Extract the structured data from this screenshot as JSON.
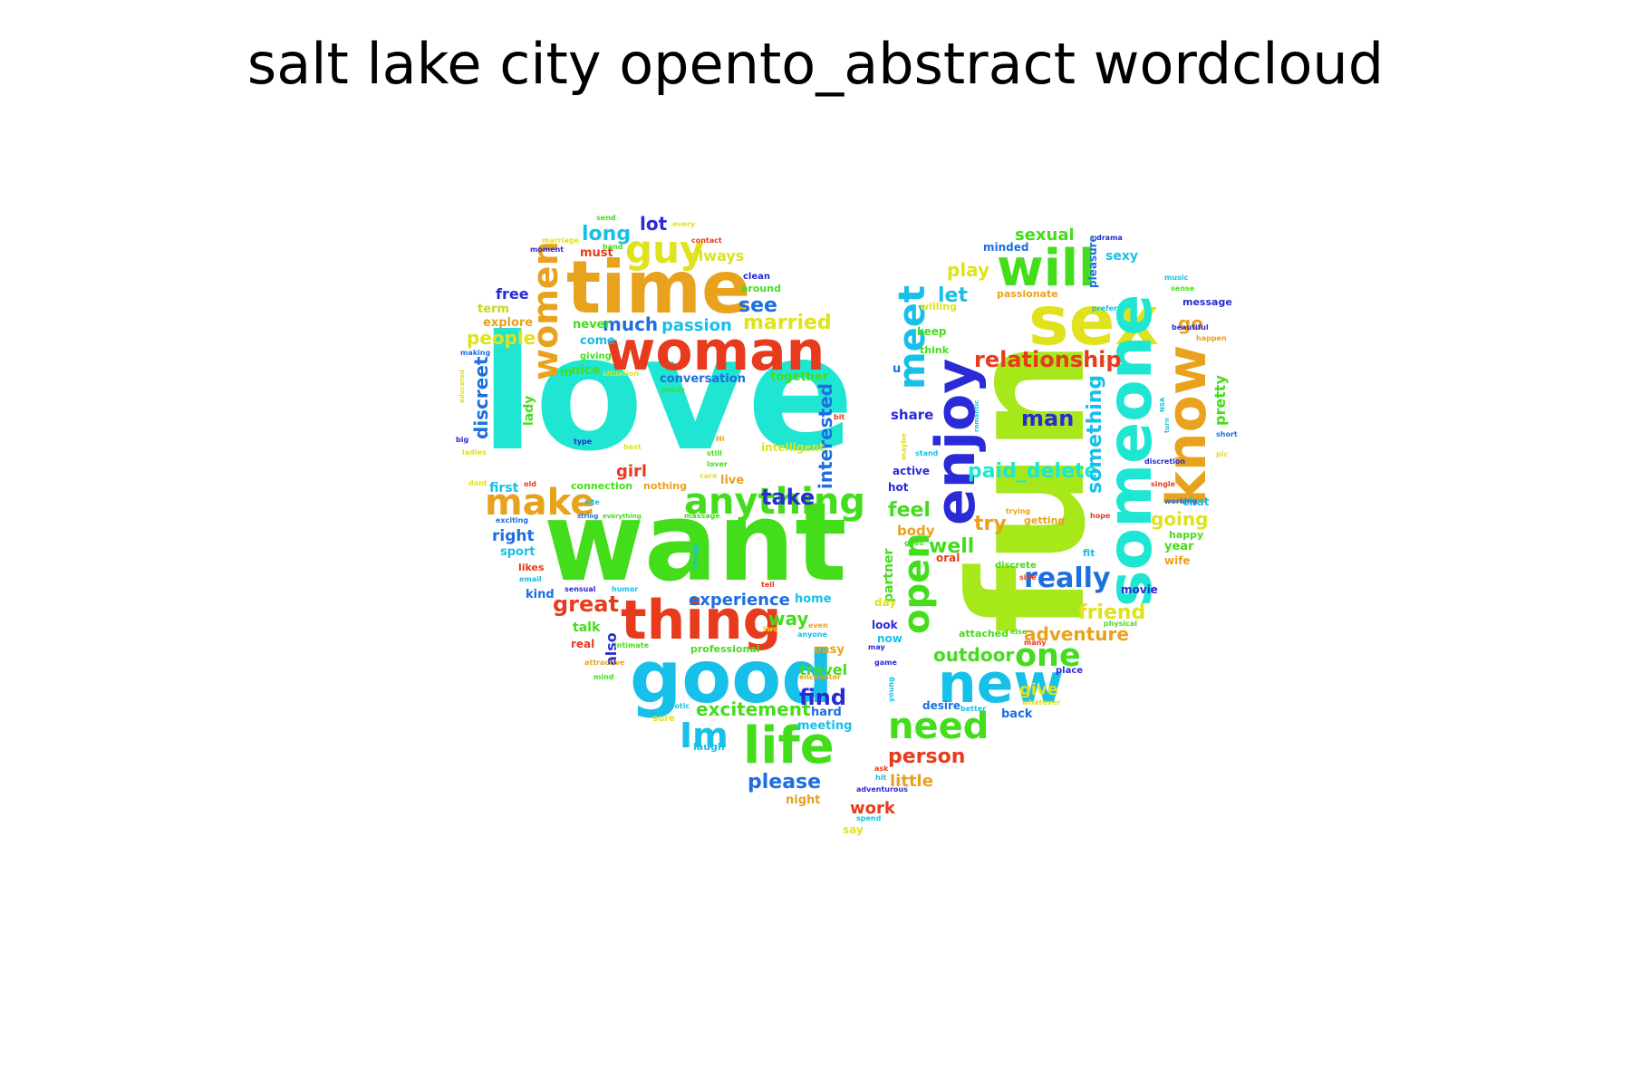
{
  "title": "salt lake city opento_abstract wordcloud",
  "colors": {
    "cyan": "#1ee6d2",
    "green": "#44dd1c",
    "lime": "#a6e81a",
    "yellow": "#dfe21c",
    "orange": "#e8a21e",
    "red": "#e83b1d",
    "blue": "#1d6fe0",
    "indigo": "#2a2ad6",
    "teal": "#16c0e8",
    "olive": "#c8d81c"
  },
  "words": [
    {
      "text": "love",
      "color": "cyan",
      "size": "xxl"
    },
    {
      "text": "want",
      "color": "green",
      "size": "xxl"
    },
    {
      "text": "fun",
      "color": "lime",
      "size": "xxl"
    },
    {
      "text": "time",
      "color": "orange",
      "size": "xl"
    },
    {
      "text": "woman",
      "color": "red",
      "size": "l"
    },
    {
      "text": "good",
      "color": "teal",
      "size": "xl"
    },
    {
      "text": "thing",
      "color": "red",
      "size": "l"
    },
    {
      "text": "sex",
      "color": "yellow",
      "size": "xl"
    },
    {
      "text": "will",
      "color": "green",
      "size": "l"
    },
    {
      "text": "someone",
      "color": "cyan",
      "size": "xl"
    },
    {
      "text": "enjoy",
      "color": "indigo",
      "size": "xl"
    },
    {
      "text": "new",
      "color": "teal",
      "size": "xl"
    },
    {
      "text": "know",
      "color": "orange",
      "size": "l"
    },
    {
      "text": "life",
      "color": "green",
      "size": "l"
    },
    {
      "text": "anything",
      "color": "green",
      "size": "m"
    },
    {
      "text": "make",
      "color": "orange",
      "size": "m"
    },
    {
      "text": "women",
      "color": "orange",
      "size": "m"
    },
    {
      "text": "guy",
      "color": "yellow",
      "size": "m"
    },
    {
      "text": "need",
      "color": "green",
      "size": "m"
    },
    {
      "text": "open",
      "color": "green",
      "size": "m"
    },
    {
      "text": "meet",
      "color": "teal",
      "size": "m"
    },
    {
      "text": "Im",
      "color": "teal",
      "size": "m"
    },
    {
      "text": "one",
      "color": "green",
      "size": "m"
    },
    {
      "text": "really",
      "color": "blue",
      "size": "m"
    },
    {
      "text": "relationship",
      "color": "red",
      "size": "s"
    },
    {
      "text": "great",
      "color": "red",
      "size": "s"
    },
    {
      "text": "man",
      "color": "indigo",
      "size": "s"
    },
    {
      "text": "paid_delete",
      "color": "cyan",
      "size": "s"
    },
    {
      "text": "something",
      "color": "teal",
      "size": "s"
    },
    {
      "text": "person",
      "color": "red",
      "size": "s"
    },
    {
      "text": "friend",
      "color": "yellow",
      "size": "s"
    },
    {
      "text": "adventure",
      "color": "orange",
      "size": "s"
    },
    {
      "text": "outdoor",
      "color": "green",
      "size": "s"
    },
    {
      "text": "experience",
      "color": "blue",
      "size": "s"
    },
    {
      "text": "excitement",
      "color": "green",
      "size": "s"
    },
    {
      "text": "please",
      "color": "blue",
      "size": "s"
    },
    {
      "text": "find",
      "color": "indigo",
      "size": "s"
    },
    {
      "text": "take",
      "color": "indigo",
      "size": "s"
    },
    {
      "text": "married",
      "color": "yellow",
      "size": "s"
    },
    {
      "text": "see",
      "color": "blue",
      "size": "s"
    },
    {
      "text": "much",
      "color": "blue",
      "size": "s"
    },
    {
      "text": "passion",
      "color": "teal",
      "size": "s"
    },
    {
      "text": "people",
      "color": "yellow",
      "size": "s"
    },
    {
      "text": "discreet",
      "color": "blue",
      "size": "s"
    },
    {
      "text": "interested",
      "color": "blue",
      "size": "s"
    },
    {
      "text": "long",
      "color": "teal",
      "size": "s"
    },
    {
      "text": "lot",
      "color": "indigo",
      "size": "s"
    },
    {
      "text": "going",
      "color": "yellow",
      "size": "s"
    },
    {
      "text": "well",
      "color": "green",
      "size": "s"
    },
    {
      "text": "try",
      "color": "orange",
      "size": "s"
    },
    {
      "text": "feel",
      "color": "green",
      "size": "s"
    },
    {
      "text": "let",
      "color": "teal",
      "size": "s"
    },
    {
      "text": "play",
      "color": "yellow",
      "size": "s"
    },
    {
      "text": "sexual",
      "color": "green",
      "size": "s"
    },
    {
      "text": "go",
      "color": "orange",
      "size": "s"
    },
    {
      "text": "pretty",
      "color": "green",
      "size": "xs"
    },
    {
      "text": "way",
      "color": "green",
      "size": "s"
    },
    {
      "text": "give",
      "color": "yellow",
      "size": "s"
    },
    {
      "text": "little",
      "color": "orange",
      "size": "s"
    },
    {
      "text": "work",
      "color": "red",
      "size": "s"
    },
    {
      "text": "girl",
      "color": "red",
      "size": "s"
    },
    {
      "text": "right",
      "color": "blue",
      "size": "xs"
    },
    {
      "text": "also",
      "color": "indigo",
      "size": "xs"
    },
    {
      "text": "always",
      "color": "yellow",
      "size": "xs"
    },
    {
      "text": "travel",
      "color": "green",
      "size": "xs"
    },
    {
      "text": "share",
      "color": "indigo",
      "size": "xs"
    },
    {
      "text": "body",
      "color": "orange",
      "size": "xs"
    },
    {
      "text": "partner",
      "color": "green",
      "size": "xs"
    },
    {
      "text": "free",
      "color": "indigo",
      "size": "xs"
    },
    {
      "text": "term",
      "color": "olive",
      "size": "xs"
    },
    {
      "text": "explore",
      "color": "orange",
      "size": "xs"
    },
    {
      "text": "nice",
      "color": "green",
      "size": "xs"
    },
    {
      "text": "never",
      "color": "green",
      "size": "xs"
    },
    {
      "text": "come",
      "color": "teal",
      "size": "xs"
    },
    {
      "text": "conversation",
      "color": "blue",
      "size": "xs"
    },
    {
      "text": "together",
      "color": "green",
      "size": "xs"
    },
    {
      "text": "intelligent",
      "color": "yellow",
      "size": "xs"
    },
    {
      "text": "lady",
      "color": "green",
      "size": "xs"
    },
    {
      "text": "first",
      "color": "teal",
      "size": "xs"
    },
    {
      "text": "sport",
      "color": "teal",
      "size": "xs"
    },
    {
      "text": "kind",
      "color": "blue",
      "size": "xs"
    },
    {
      "text": "talk",
      "color": "green",
      "size": "xs"
    },
    {
      "text": "real",
      "color": "red",
      "size": "xs"
    },
    {
      "text": "professional",
      "color": "green",
      "size": "xs"
    },
    {
      "text": "easy",
      "color": "orange",
      "size": "xs"
    },
    {
      "text": "hard",
      "color": "blue",
      "size": "xs"
    },
    {
      "text": "meeting",
      "color": "teal",
      "size": "xs"
    },
    {
      "text": "home",
      "color": "teal",
      "size": "xs"
    },
    {
      "text": "night",
      "color": "orange",
      "size": "xs"
    },
    {
      "text": "live",
      "color": "orange",
      "size": "xs"
    },
    {
      "text": "connection",
      "color": "green",
      "size": "xs"
    },
    {
      "text": "nothing",
      "color": "orange",
      "size": "xs"
    },
    {
      "text": "must",
      "color": "red",
      "size": "xs"
    },
    {
      "text": "clean",
      "color": "indigo",
      "size": "xs"
    },
    {
      "text": "around",
      "color": "green",
      "size": "xs"
    },
    {
      "text": "giving",
      "color": "green",
      "size": "xs"
    },
    {
      "text": "minded",
      "color": "blue",
      "size": "xs"
    },
    {
      "text": "sexy",
      "color": "teal",
      "size": "xs"
    },
    {
      "text": "pleasure",
      "color": "blue",
      "size": "xs"
    },
    {
      "text": "message",
      "color": "indigo",
      "size": "xs"
    },
    {
      "text": "passionate",
      "color": "orange",
      "size": "xs"
    },
    {
      "text": "willing",
      "color": "yellow",
      "size": "xs"
    },
    {
      "text": "keep",
      "color": "green",
      "size": "xs"
    },
    {
      "text": "think",
      "color": "green",
      "size": "xs"
    },
    {
      "text": "hot",
      "color": "indigo",
      "size": "xs"
    },
    {
      "text": "active",
      "color": "indigo",
      "size": "xs"
    },
    {
      "text": "chat",
      "color": "teal",
      "size": "xs"
    },
    {
      "text": "happy",
      "color": "green",
      "size": "xs"
    },
    {
      "text": "year",
      "color": "green",
      "size": "xs"
    },
    {
      "text": "wife",
      "color": "orange",
      "size": "xs"
    },
    {
      "text": "movie",
      "color": "indigo",
      "size": "xs"
    },
    {
      "text": "look",
      "color": "indigo",
      "size": "xs"
    },
    {
      "text": "now",
      "color": "teal",
      "size": "xs"
    },
    {
      "text": "day",
      "color": "yellow",
      "size": "xs"
    },
    {
      "text": "oral",
      "color": "red",
      "size": "xs"
    },
    {
      "text": "desire",
      "color": "blue",
      "size": "xs"
    },
    {
      "text": "back",
      "color": "blue",
      "size": "xs"
    },
    {
      "text": "say",
      "color": "yellow",
      "size": "xs"
    },
    {
      "text": "place",
      "color": "indigo",
      "size": "xxs"
    },
    {
      "text": "attached",
      "color": "green",
      "size": "xxs"
    },
    {
      "text": "getting",
      "color": "orange",
      "size": "xxs"
    },
    {
      "text": "fit",
      "color": "teal",
      "size": "xxs"
    },
    {
      "text": "discrete",
      "color": "green",
      "size": "xxs"
    },
    {
      "text": "drama",
      "color": "indigo",
      "size": "xxs"
    },
    {
      "text": "music",
      "color": "teal",
      "size": "xxs"
    },
    {
      "text": "sense",
      "color": "green",
      "size": "xxs"
    },
    {
      "text": "prefer",
      "color": "teal",
      "size": "xxs"
    },
    {
      "text": "beautiful",
      "color": "indigo",
      "size": "xxs"
    },
    {
      "text": "happen",
      "color": "orange",
      "size": "xxs"
    },
    {
      "text": "discretion",
      "color": "indigo",
      "size": "xxs"
    },
    {
      "text": "short",
      "color": "blue",
      "size": "xxs"
    },
    {
      "text": "pic",
      "color": "yellow",
      "size": "xxs"
    },
    {
      "text": "single",
      "color": "red",
      "size": "xxs"
    },
    {
      "text": "working",
      "color": "blue",
      "size": "xxs"
    },
    {
      "text": "hope",
      "color": "red",
      "size": "xxs"
    },
    {
      "text": "trying",
      "color": "orange",
      "size": "xxs"
    },
    {
      "text": "physical",
      "color": "green",
      "size": "xxs"
    },
    {
      "text": "whatever",
      "color": "yellow",
      "size": "xxs"
    },
    {
      "text": "better",
      "color": "teal",
      "size": "xxs"
    },
    {
      "text": "side",
      "color": "red",
      "size": "xxs"
    },
    {
      "text": "many",
      "color": "red",
      "size": "xxs"
    },
    {
      "text": "else",
      "color": "green",
      "size": "xxs"
    },
    {
      "text": "goes",
      "color": "green",
      "size": "xxs"
    },
    {
      "text": "stand",
      "color": "teal",
      "size": "xxs"
    },
    {
      "text": "maybe",
      "color": "yellow",
      "size": "xxs"
    },
    {
      "text": "romantic",
      "color": "teal",
      "size": "xxs"
    },
    {
      "text": "young",
      "color": "teal",
      "size": "xxs"
    },
    {
      "text": "game",
      "color": "indigo",
      "size": "xxs"
    },
    {
      "text": "may",
      "color": "indigo",
      "size": "xxs"
    },
    {
      "text": "ask",
      "color": "red",
      "size": "xxs"
    },
    {
      "text": "hit",
      "color": "teal",
      "size": "xxs"
    },
    {
      "text": "adventurous",
      "color": "indigo",
      "size": "xxs"
    },
    {
      "text": "spend",
      "color": "teal",
      "size": "xxs"
    },
    {
      "text": "send",
      "color": "green",
      "size": "xxs"
    },
    {
      "text": "every",
      "color": "yellow",
      "size": "xxs"
    },
    {
      "text": "contact",
      "color": "red",
      "size": "xxs"
    },
    {
      "text": "marriage",
      "color": "yellow",
      "size": "xxs"
    },
    {
      "text": "hand",
      "color": "green",
      "size": "xxs"
    },
    {
      "text": "moment",
      "color": "indigo",
      "size": "xxs"
    },
    {
      "text": "making",
      "color": "blue",
      "size": "xxs"
    },
    {
      "text": "situation",
      "color": "yellow",
      "size": "xxs"
    },
    {
      "text": "ready",
      "color": "green",
      "size": "xxs"
    },
    {
      "text": "educated",
      "color": "yellow",
      "size": "xxs"
    },
    {
      "text": "big",
      "color": "indigo",
      "size": "xxs"
    },
    {
      "text": "ladies",
      "color": "yellow",
      "size": "xxs"
    },
    {
      "text": "type",
      "color": "indigo",
      "size": "xxs"
    },
    {
      "text": "best",
      "color": "yellow",
      "size": "xxs"
    },
    {
      "text": "Hi",
      "color": "orange",
      "size": "xxs"
    },
    {
      "text": "still",
      "color": "green",
      "size": "xxs"
    },
    {
      "text": "lover",
      "color": "green",
      "size": "xxs"
    },
    {
      "text": "care",
      "color": "yellow",
      "size": "xxs"
    },
    {
      "text": "bit",
      "color": "red",
      "size": "xxs"
    },
    {
      "text": "dont",
      "color": "yellow",
      "size": "xxs"
    },
    {
      "text": "old",
      "color": "red",
      "size": "xxs"
    },
    {
      "text": "site",
      "color": "teal",
      "size": "xxs"
    },
    {
      "text": "string",
      "color": "blue",
      "size": "xxs"
    },
    {
      "text": "everything",
      "color": "green",
      "size": "xxs"
    },
    {
      "text": "massage",
      "color": "green",
      "size": "xxs"
    },
    {
      "text": "exciting",
      "color": "blue",
      "size": "xxs"
    },
    {
      "text": "likes",
      "color": "red",
      "size": "xxs"
    },
    {
      "text": "email",
      "color": "teal",
      "size": "xxs"
    },
    {
      "text": "sensual",
      "color": "indigo",
      "size": "xxs"
    },
    {
      "text": "humor",
      "color": "teal",
      "size": "xxs"
    },
    {
      "text": "change",
      "color": "teal",
      "size": "xxs"
    },
    {
      "text": "tell",
      "color": "red",
      "size": "xxs"
    },
    {
      "text": "even",
      "color": "orange",
      "size": "xxs"
    },
    {
      "text": "two",
      "color": "yellow",
      "size": "xxs"
    },
    {
      "text": "anyone",
      "color": "teal",
      "size": "xxs"
    },
    {
      "text": "intimate",
      "color": "green",
      "size": "xxs"
    },
    {
      "text": "attractive",
      "color": "orange",
      "size": "xxs"
    },
    {
      "text": "encounter",
      "color": "orange",
      "size": "xxs"
    },
    {
      "text": "mind",
      "color": "green",
      "size": "xxs"
    },
    {
      "text": "erotic",
      "color": "teal",
      "size": "xxs"
    },
    {
      "text": "sure",
      "color": "yellow",
      "size": "xxs"
    },
    {
      "text": "laugh",
      "color": "teal",
      "size": "xxs"
    },
    {
      "text": "u",
      "color": "blue",
      "size": "xxs"
    },
    {
      "text": "m",
      "color": "green",
      "size": "xxs"
    },
    {
      "text": "turn",
      "color": "teal",
      "size": "xxs"
    },
    {
      "text": "NSA",
      "color": "teal",
      "size": "xxs"
    }
  ]
}
